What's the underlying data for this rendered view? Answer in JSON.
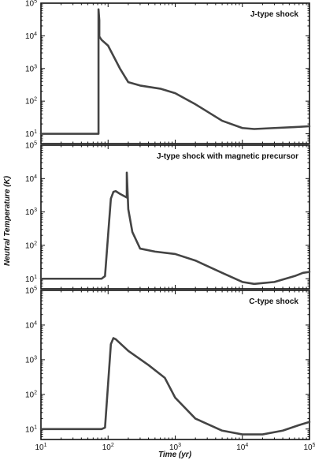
{
  "chart_data": {
    "type": "line",
    "xscale": "log",
    "yscale": "log",
    "xlim": [
      10,
      100000
    ],
    "ylim": [
      5,
      100000
    ],
    "xlabel": "Time (yr)",
    "ylabel": "Neutral Temperature (K)",
    "x_ticks": [
      {
        "base": "10",
        "exp": "1"
      },
      {
        "base": "10",
        "exp": "2"
      },
      {
        "base": "10",
        "exp": "3"
      },
      {
        "base": "10",
        "exp": "4"
      },
      {
        "base": "10",
        "exp": "5"
      }
    ],
    "y_ticks": [
      {
        "base": "10",
        "exp": "1"
      },
      {
        "base": "10",
        "exp": "2"
      },
      {
        "base": "10",
        "exp": "3"
      },
      {
        "base": "10",
        "exp": "4"
      },
      {
        "base": "10",
        "exp": "5"
      }
    ],
    "panels": [
      {
        "title": "J-type shock",
        "series": [
          {
            "x": [
              10,
              70,
              72,
              72,
              74,
              74,
              80,
              100,
              150,
              200,
              300,
              600,
              1000,
              2000,
              5000,
              10000,
              15000,
              30000,
              60000,
              100000
            ],
            "y": [
              10,
              10,
              10,
              65000,
              30000,
              9500,
              7500,
              5000,
              1000,
              380,
              300,
              240,
              175,
              80,
              25,
              15,
              14,
              15,
              16,
              17
            ]
          }
        ]
      },
      {
        "title": "J-type shock with magnetic precursor",
        "series": [
          {
            "x": [
              10,
              80,
              90,
              100,
              110,
              120,
              130,
              150,
              190,
              190,
              200,
              230,
              300,
              500,
              1000,
              2000,
              5000,
              10000,
              15000,
              30000,
              60000,
              80000,
              100000
            ],
            "y": [
              10,
              10,
              12,
              200,
              2500,
              4000,
              4200,
              3500,
              2700,
              15000,
              1200,
              250,
              80,
              65,
              55,
              35,
              15,
              8,
              7,
              8,
              12,
              15,
              16
            ]
          }
        ]
      },
      {
        "title": "C-type shock",
        "series": [
          {
            "x": [
              10,
              80,
              90,
              100,
              110,
              120,
              130,
              200,
              400,
              700,
              1000,
              2000,
              5000,
              10000,
              20000,
              40000,
              70000,
              100000
            ],
            "y": [
              10,
              10,
              11,
              200,
              2800,
              4200,
              3900,
              1800,
              700,
              300,
              80,
              20,
              9,
              7,
              7,
              9,
              13,
              16
            ]
          }
        ]
      }
    ]
  }
}
